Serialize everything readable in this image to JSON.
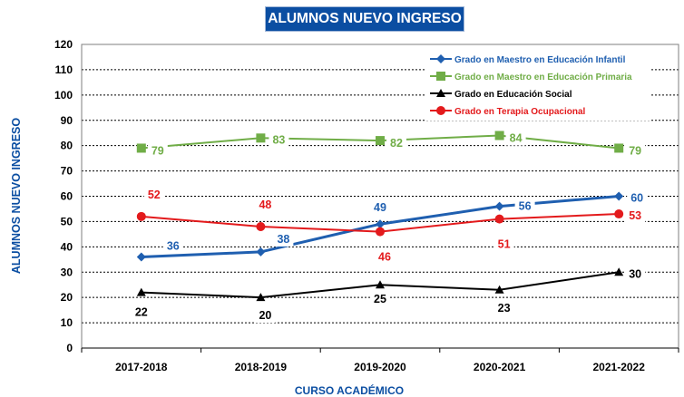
{
  "chart_data": {
    "type": "line",
    "title": "ALUMNOS NUEVO INGRESO",
    "xlabel": "CURSO ACADÉMICO",
    "ylabel": "ALUMNOS NUEVO INGRESO",
    "categories": [
      "2017-2018",
      "2018-2019",
      "2019-2020",
      "2020-2021",
      "2021-2022"
    ],
    "ylim": [
      0,
      120
    ],
    "yticks": [
      0,
      10,
      20,
      30,
      40,
      50,
      60,
      70,
      80,
      90,
      100,
      110,
      120
    ],
    "grid": true,
    "legend_position": "top-right",
    "series": [
      {
        "name": "Grado en Maestro en Educación Infantil",
        "values": [
          36,
          38,
          49,
          56,
          60
        ],
        "color": "#1f5fb0",
        "marker": "diamond"
      },
      {
        "name": "Grado en Maestro en Educación Primaria",
        "values": [
          79,
          83,
          82,
          84,
          79
        ],
        "color": "#70ad47",
        "marker": "square"
      },
      {
        "name": "Grado en Educación Social",
        "values": [
          22,
          20,
          25,
          23,
          30
        ],
        "color": "#000000",
        "marker": "triangle"
      },
      {
        "name": "Grado en Terapia Ocupacional",
        "values": [
          52,
          48,
          46,
          51,
          53
        ],
        "color": "#e31a1c",
        "marker": "circle"
      }
    ]
  }
}
